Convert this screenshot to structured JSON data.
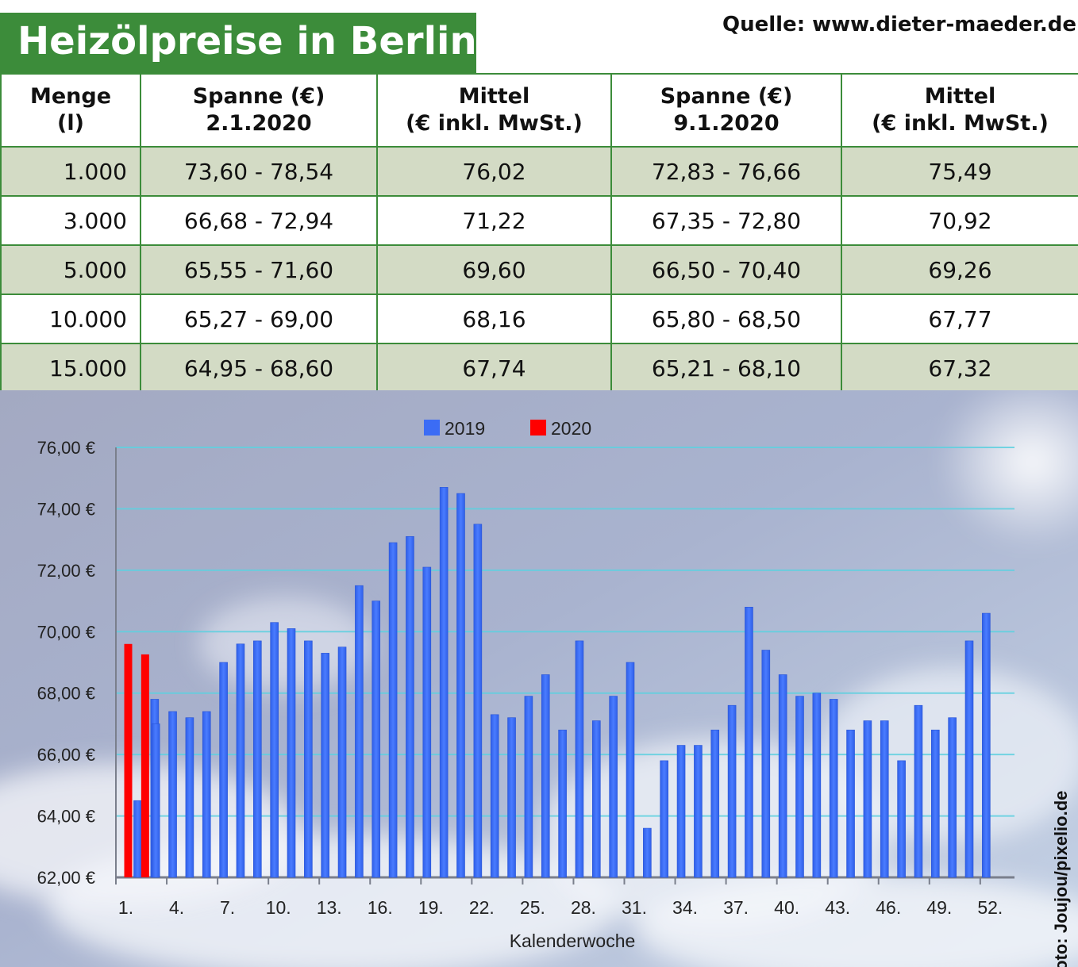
{
  "header": {
    "title": "Heizölpreise in Berlin",
    "source": "Quelle: www.dieter-maeder.de"
  },
  "table": {
    "headers": [
      [
        "Menge",
        "(l)"
      ],
      [
        "Spanne (€)",
        "2.1.2020"
      ],
      [
        "Mittel",
        "(€ inkl. MwSt.)"
      ],
      [
        "Spanne (€)",
        "9.1.2020"
      ],
      [
        "Mittel",
        "(€ inkl. MwSt.)"
      ]
    ],
    "rows": [
      [
        "1.000",
        "73,60 - 78,54",
        "76,02",
        "72,83 - 76,66",
        "75,49"
      ],
      [
        "3.000",
        "66,68 - 72,94",
        "71,22",
        "67,35 - 72,80",
        "70,92"
      ],
      [
        "5.000",
        "65,55 - 71,60",
        "69,60",
        "66,50 - 70,40",
        "69,26"
      ],
      [
        "10.000",
        "65,27 - 69,00",
        "68,16",
        "65,80 - 68,50",
        "67,77"
      ],
      [
        "15.000",
        "64,95 - 68,60",
        "67,74",
        "65,21 - 68,10",
        "67,32"
      ]
    ]
  },
  "chart_data": {
    "type": "bar",
    "xlabel": "Kalenderwoche",
    "ylabel": "",
    "ylim": [
      62,
      76
    ],
    "yticks": [
      "62,00 €",
      "64,00 €",
      "66,00 €",
      "68,00 €",
      "70,00 €",
      "72,00 €",
      "74,00 €",
      "76,00 €"
    ],
    "xticks": [
      "1.",
      "4.",
      "7.",
      "10.",
      "13.",
      "16.",
      "19.",
      "22.",
      "25.",
      "28.",
      "31.",
      "34.",
      "37.",
      "40.",
      "43.",
      "46.",
      "49.",
      "52."
    ],
    "legend_position": "top",
    "grid": true,
    "series": [
      {
        "name": "2019",
        "color": "#3b6cf5",
        "values": [
          64.5,
          67.8,
          67.0,
          67.4,
          67.2,
          67.4,
          69.0,
          69.6,
          69.7,
          70.3,
          70.1,
          69.7,
          69.3,
          69.5,
          71.5,
          71.0,
          72.9,
          73.1,
          72.1,
          74.7,
          74.5,
          73.5,
          67.3,
          67.2,
          67.9,
          68.6,
          66.8,
          69.7,
          67.1,
          67.9,
          69.0,
          63.6,
          65.8,
          66.3,
          66.3,
          66.8,
          67.6,
          70.8,
          69.4,
          68.6,
          67.9,
          68.0,
          67.8,
          66.8,
          67.1,
          67.1,
          65.8,
          67.6,
          66.8,
          67.2,
          69.7,
          70.6
        ]
      },
      {
        "name": "2020",
        "color": "#ff0000",
        "values": [
          69.6,
          69.26
        ]
      }
    ]
  },
  "photo_credit": "Foto: Joujou/pixelio.de"
}
